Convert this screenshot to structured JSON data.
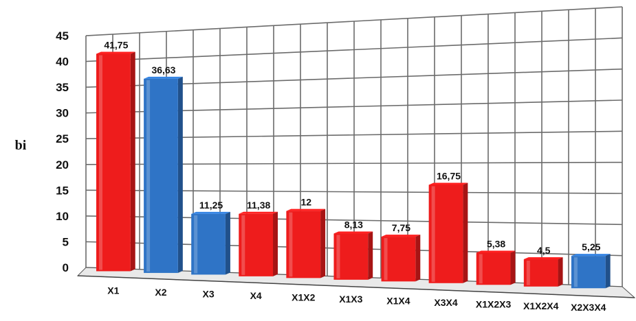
{
  "chart_data": {
    "type": "bar",
    "title": "",
    "xlabel": "",
    "ylabel": "bi",
    "ylim": [
      0,
      45
    ],
    "yticks": [
      0,
      5,
      10,
      15,
      20,
      25,
      30,
      35,
      40,
      45
    ],
    "grid": true,
    "categories": [
      "X1",
      "X2",
      "X3",
      "X4",
      "X1X2",
      "X1X3",
      "X1X4",
      "X3X4",
      "X1X2X3",
      "X1X2X4",
      "X2X3X4"
    ],
    "values": [
      41.75,
      36.63,
      11.25,
      11.38,
      12,
      8.13,
      7.75,
      16.75,
      5.38,
      4.5,
      5.25
    ],
    "data_labels": [
      "41,75",
      "36,63",
      "11,25",
      "11,38",
      "12",
      "8,13",
      "7,75",
      "16,75",
      "5,38",
      "4,5",
      "5,25"
    ],
    "bar_colors": [
      "#ee1c1c",
      "#2f74c6",
      "#2f74c6",
      "#ee1c1c",
      "#ee1c1c",
      "#ee1c1c",
      "#ee1c1c",
      "#ee1c1c",
      "#ee1c1c",
      "#ee1c1c",
      "#2f74c6"
    ],
    "colors": {
      "red": "#ee1c1c",
      "blue": "#2f74c6",
      "grid": "#6b6b6b"
    }
  }
}
